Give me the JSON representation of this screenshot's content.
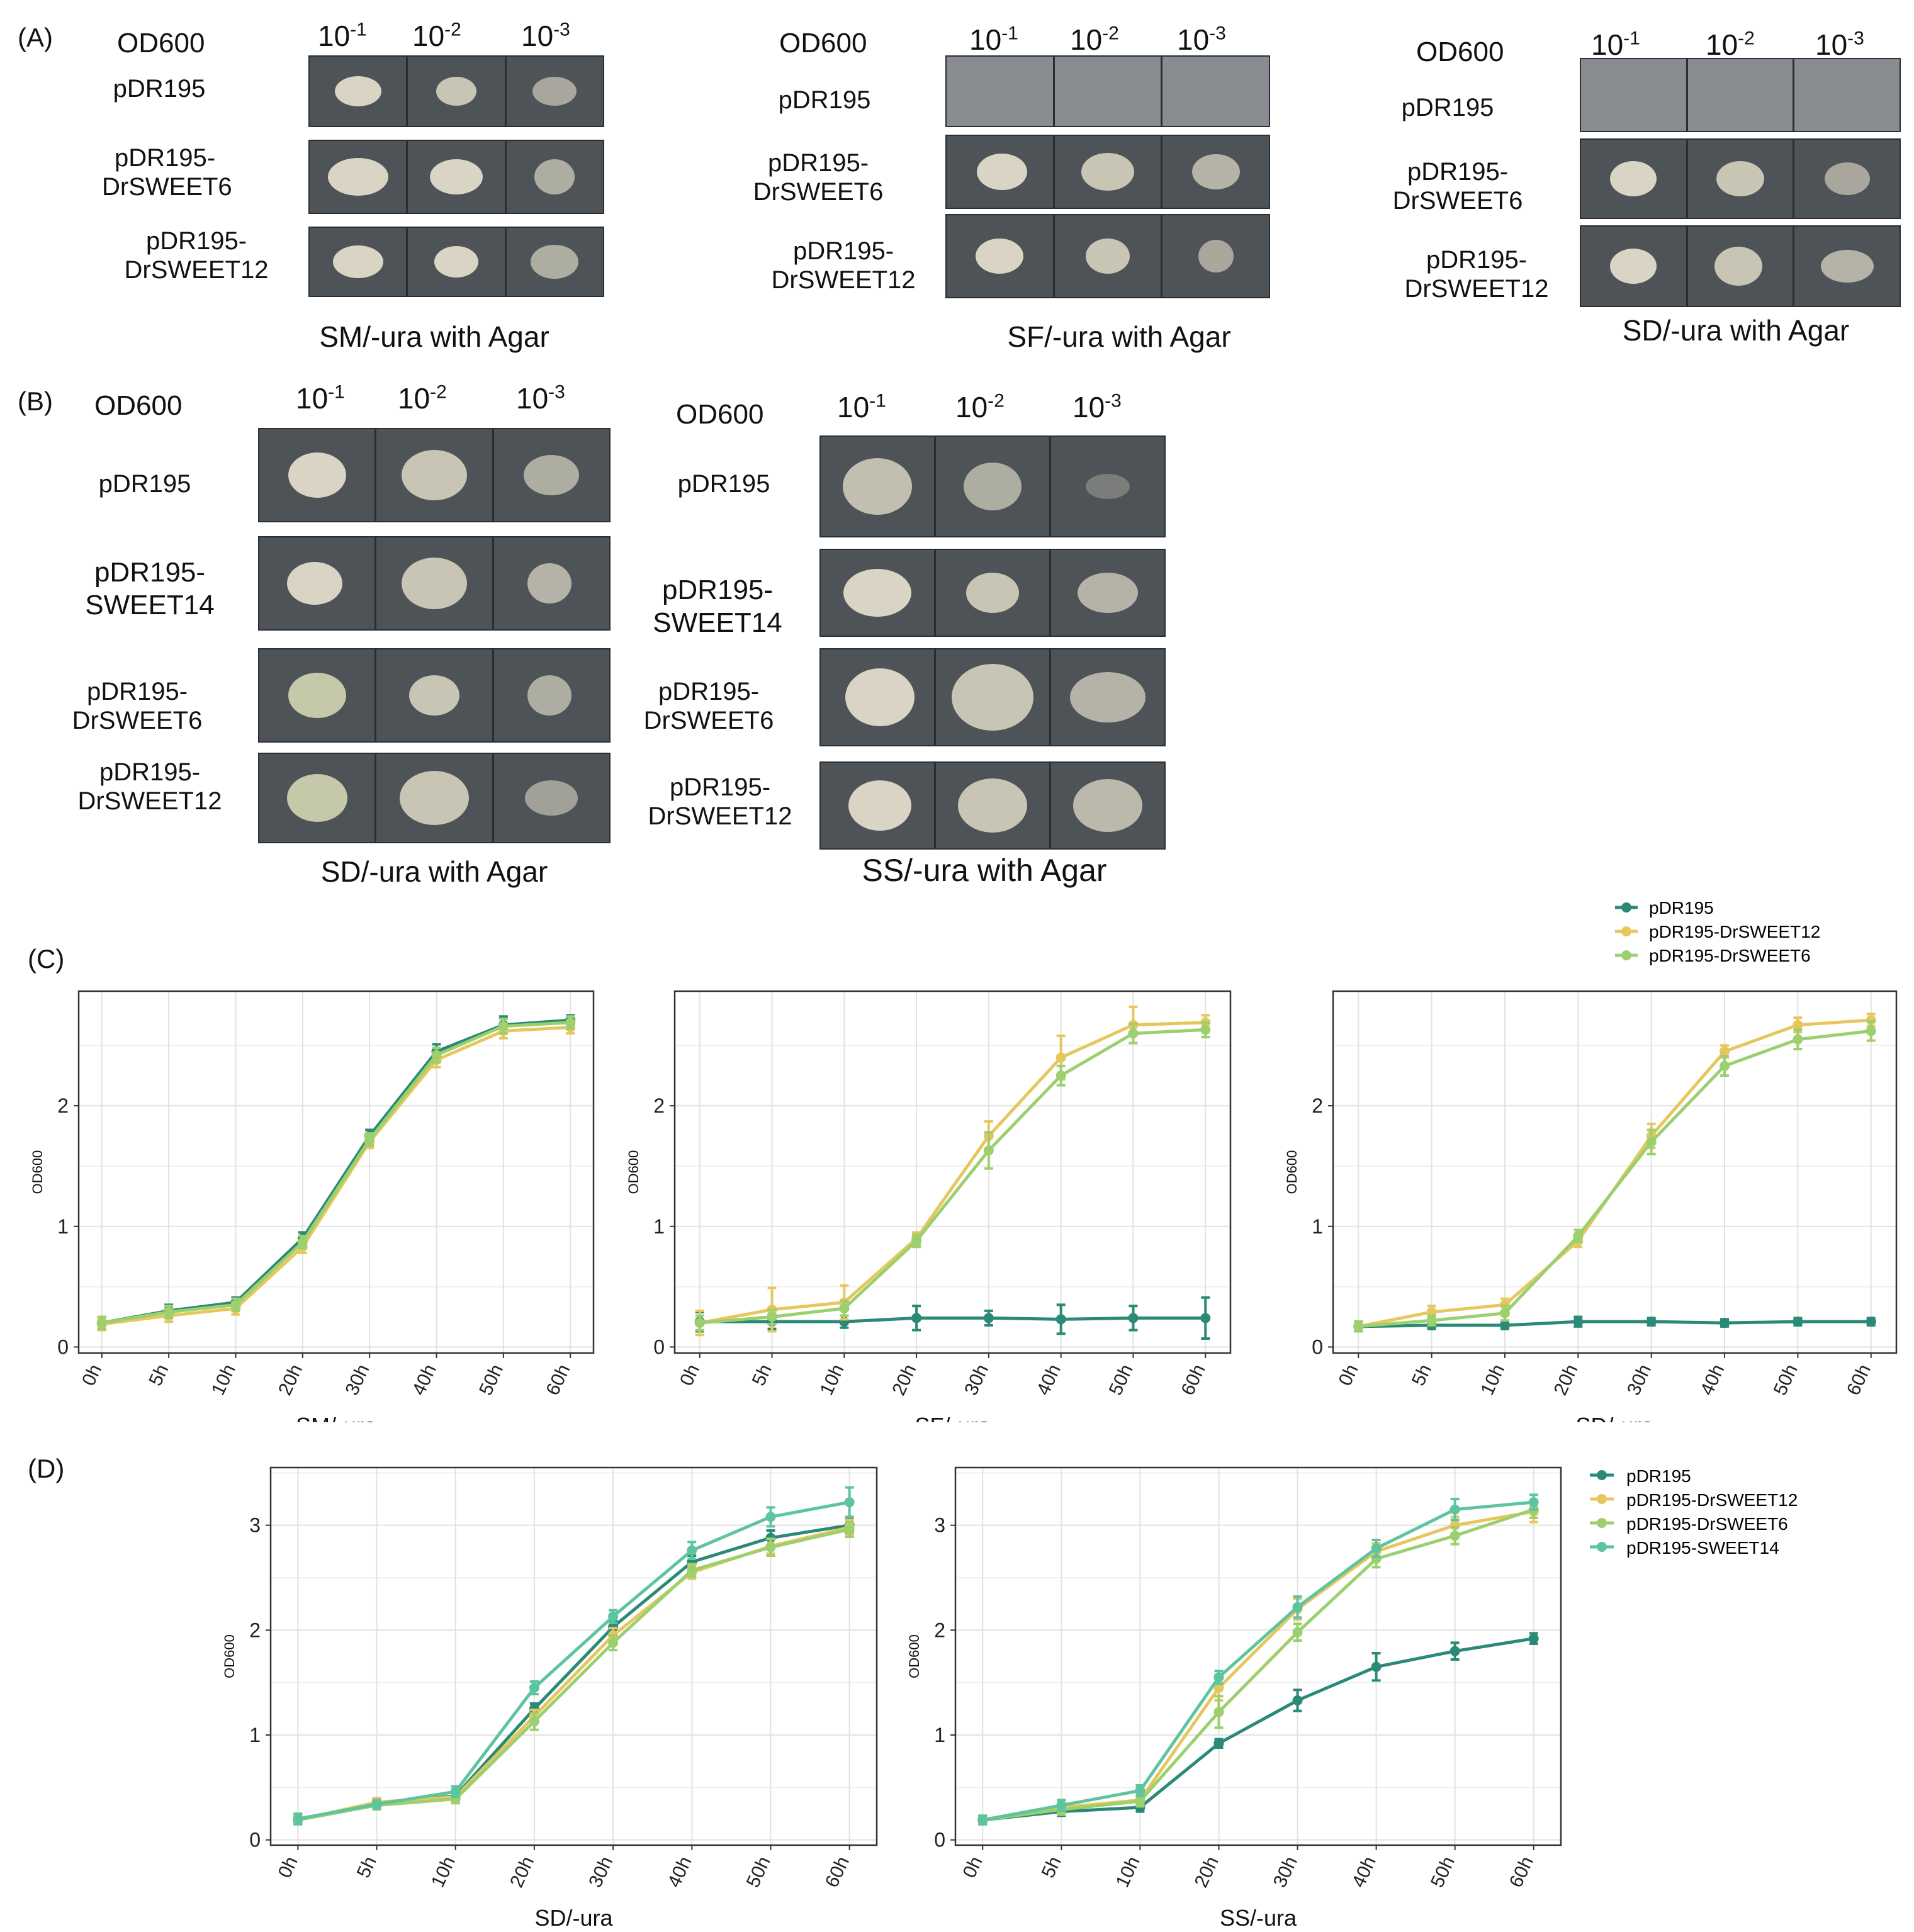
{
  "panels": {
    "A": "(A)",
    "B": "(B)",
    "C": "(C)",
    "D": "(D)"
  },
  "od_label": "OD600",
  "dilution_base": "10",
  "dilution_exponents": [
    "-1",
    "-2",
    "-3"
  ],
  "strains": {
    "p": [
      "pDR195"
    ],
    "d6": [
      "pDR195-",
      "DrSWEET6"
    ],
    "d12": [
      "pDR195-",
      "DrSWEET12"
    ],
    "s14": [
      "pDR195-",
      "SWEET14"
    ]
  },
  "media": {
    "a1": "SM/-ura with Agar",
    "a2": "SF/-ura with Agar",
    "a3": "SD/-ura with Agar",
    "b1": "SD/-ura with Agar",
    "b2": "SS/-ura with Agar"
  },
  "legend_c": [
    {
      "name": "pDR195",
      "color": "#2a8a77"
    },
    {
      "name": "pDR195-DrSWEET12",
      "color": "#e6c75e"
    },
    {
      "name": "pDR195-DrSWEET6",
      "color": "#9ccf6d"
    }
  ],
  "legend_d": [
    {
      "name": "pDR195",
      "color": "#2a8a77"
    },
    {
      "name": "pDR195-DrSWEET12",
      "color": "#e6c75e"
    },
    {
      "name": "pDR195-DrSWEET6",
      "color": "#9ccf6d"
    },
    {
      "name": "pDR195-SWEET14",
      "color": "#5ec4a0"
    }
  ],
  "chart_data": [
    {
      "type": "line",
      "panel": "C",
      "xlabel": "SM/-ura",
      "ylabel": "OD600",
      "categories": [
        "0h",
        "5h",
        "10h",
        "20h",
        "30h",
        "40h",
        "50h",
        "60h"
      ],
      "yticks": [
        0,
        1,
        2
      ],
      "ylim": [
        -0.05,
        2.95
      ],
      "series": [
        {
          "name": "pDR195",
          "values": [
            0.2,
            0.3,
            0.37,
            0.9,
            1.75,
            2.45,
            2.67,
            2.71
          ],
          "err": [
            0.05,
            0.05,
            0.04,
            0.05,
            0.05,
            0.06,
            0.07,
            0.04
          ]
        },
        {
          "name": "pDR195-DrSWEET12",
          "values": [
            0.19,
            0.26,
            0.32,
            0.83,
            1.7,
            2.38,
            2.62,
            2.65
          ],
          "err": [
            0.05,
            0.05,
            0.05,
            0.05,
            0.05,
            0.06,
            0.06,
            0.05
          ]
        },
        {
          "name": "pDR195-DrSWEET6",
          "values": [
            0.2,
            0.29,
            0.35,
            0.87,
            1.72,
            2.42,
            2.66,
            2.69
          ],
          "err": [
            0.05,
            0.05,
            0.05,
            0.05,
            0.05,
            0.06,
            0.06,
            0.05
          ]
        }
      ]
    },
    {
      "type": "line",
      "panel": "C",
      "xlabel": "SF/-ura",
      "ylabel": "OD600",
      "categories": [
        "0h",
        "5h",
        "10h",
        "20h",
        "30h",
        "40h",
        "50h",
        "60h"
      ],
      "yticks": [
        0,
        1,
        2
      ],
      "ylim": [
        -0.05,
        2.95
      ],
      "series": [
        {
          "name": "pDR195",
          "values": [
            0.21,
            0.21,
            0.21,
            0.24,
            0.24,
            0.23,
            0.24,
            0.24
          ],
          "err": [
            0.08,
            0.06,
            0.05,
            0.1,
            0.06,
            0.12,
            0.1,
            0.17
          ]
        },
        {
          "name": "pDR195-DrSWEET12",
          "values": [
            0.2,
            0.31,
            0.37,
            0.9,
            1.75,
            2.4,
            2.67,
            2.69
          ],
          "err": [
            0.1,
            0.18,
            0.14,
            0.05,
            0.12,
            0.18,
            0.15,
            0.06
          ]
        },
        {
          "name": "pDR195-DrSWEET6",
          "values": [
            0.2,
            0.25,
            0.32,
            0.88,
            1.63,
            2.25,
            2.6,
            2.63
          ],
          "err": [
            0.06,
            0.06,
            0.06,
            0.05,
            0.15,
            0.08,
            0.08,
            0.06
          ]
        }
      ]
    },
    {
      "type": "line",
      "panel": "C",
      "xlabel": "SD/-ura",
      "ylabel": "OD600",
      "categories": [
        "0h",
        "5h",
        "10h",
        "20h",
        "30h",
        "40h",
        "50h",
        "60h"
      ],
      "yticks": [
        0,
        1,
        2
      ],
      "ylim": [
        -0.05,
        2.95
      ],
      "series": [
        {
          "name": "pDR195",
          "values": [
            0.17,
            0.18,
            0.18,
            0.21,
            0.21,
            0.2,
            0.21,
            0.21
          ],
          "err": [
            0.04,
            0.03,
            0.03,
            0.04,
            0.03,
            0.03,
            0.03,
            0.03
          ]
        },
        {
          "name": "pDR195-DrSWEET12",
          "values": [
            0.17,
            0.29,
            0.35,
            0.88,
            1.75,
            2.45,
            2.67,
            2.71
          ],
          "err": [
            0.04,
            0.05,
            0.05,
            0.05,
            0.1,
            0.05,
            0.06,
            0.05
          ]
        },
        {
          "name": "pDR195-DrSWEET6",
          "values": [
            0.17,
            0.22,
            0.28,
            0.92,
            1.7,
            2.33,
            2.55,
            2.62
          ],
          "err": [
            0.04,
            0.04,
            0.06,
            0.05,
            0.1,
            0.08,
            0.08,
            0.08
          ]
        }
      ]
    },
    {
      "type": "line",
      "panel": "D",
      "xlabel": "SD/-ura",
      "ylabel": "OD600",
      "categories": [
        "0h",
        "5h",
        "10h",
        "20h",
        "30h",
        "40h",
        "50h",
        "60h"
      ],
      "yticks": [
        0,
        1,
        2,
        3
      ],
      "ylim": [
        -0.05,
        3.55
      ],
      "series": [
        {
          "name": "pDR195",
          "values": [
            0.2,
            0.34,
            0.42,
            1.25,
            2.03,
            2.65,
            2.88,
            3.0
          ],
          "err": [
            0.04,
            0.04,
            0.04,
            0.05,
            0.06,
            0.06,
            0.07,
            0.07
          ]
        },
        {
          "name": "pDR195-DrSWEET12",
          "values": [
            0.19,
            0.36,
            0.41,
            1.18,
            1.95,
            2.55,
            2.8,
            2.98
          ],
          "err": [
            0.04,
            0.04,
            0.04,
            0.06,
            0.07,
            0.06,
            0.07,
            0.07
          ]
        },
        {
          "name": "pDR195-DrSWEET6",
          "values": [
            0.19,
            0.33,
            0.39,
            1.13,
            1.88,
            2.57,
            2.79,
            2.96
          ],
          "err": [
            0.04,
            0.04,
            0.04,
            0.08,
            0.07,
            0.06,
            0.08,
            0.07
          ]
        },
        {
          "name": "pDR195-SWEET14",
          "values": [
            0.2,
            0.34,
            0.46,
            1.45,
            2.13,
            2.76,
            3.08,
            3.22
          ],
          "err": [
            0.05,
            0.04,
            0.05,
            0.06,
            0.06,
            0.08,
            0.09,
            0.14
          ]
        }
      ]
    },
    {
      "type": "line",
      "panel": "D",
      "xlabel": "SS/-ura",
      "ylabel": "OD600",
      "categories": [
        "0h",
        "5h",
        "10h",
        "20h",
        "30h",
        "40h",
        "50h",
        "60h"
      ],
      "yticks": [
        0,
        1,
        2,
        3
      ],
      "ylim": [
        -0.05,
        3.55
      ],
      "series": [
        {
          "name": "pDR195",
          "values": [
            0.19,
            0.27,
            0.31,
            0.92,
            1.33,
            1.65,
            1.8,
            1.92
          ],
          "err": [
            0.04,
            0.04,
            0.04,
            0.04,
            0.1,
            0.13,
            0.08,
            0.05
          ]
        },
        {
          "name": "pDR195-DrSWEET12",
          "values": [
            0.19,
            0.31,
            0.38,
            1.45,
            2.2,
            2.75,
            3.0,
            3.13
          ],
          "err": [
            0.04,
            0.05,
            0.05,
            0.12,
            0.1,
            0.08,
            0.08,
            0.1
          ]
        },
        {
          "name": "pDR195-DrSWEET6",
          "values": [
            0.19,
            0.29,
            0.37,
            1.22,
            1.98,
            2.68,
            2.9,
            3.15
          ],
          "err": [
            0.04,
            0.05,
            0.05,
            0.15,
            0.08,
            0.08,
            0.08,
            0.08
          ]
        },
        {
          "name": "pDR195-SWEET14",
          "values": [
            0.19,
            0.33,
            0.47,
            1.55,
            2.22,
            2.78,
            3.15,
            3.22
          ],
          "err": [
            0.04,
            0.05,
            0.05,
            0.06,
            0.1,
            0.08,
            0.1,
            0.07
          ]
        }
      ]
    }
  ]
}
